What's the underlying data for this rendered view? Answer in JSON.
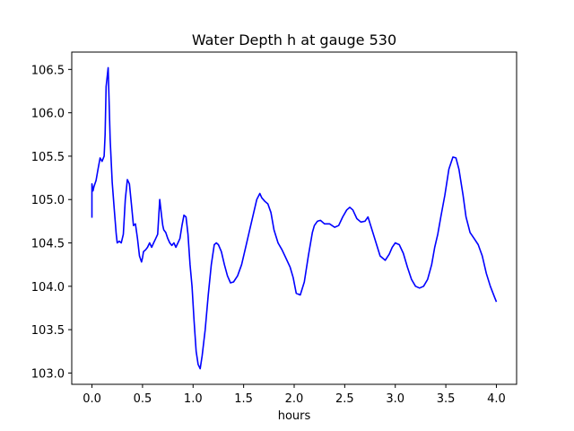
{
  "chart_data": {
    "type": "line",
    "title": "Water Depth h at gauge 530",
    "xlabel": "hours",
    "ylabel": "",
    "xlim": [
      -0.2,
      4.2
    ],
    "ylim": [
      102.87,
      106.7
    ],
    "xticks": [
      0.0,
      0.5,
      1.0,
      1.5,
      2.0,
      2.5,
      3.0,
      3.5,
      4.0
    ],
    "xtick_labels": [
      "0.0",
      "0.5",
      "1.0",
      "1.5",
      "2.0",
      "2.5",
      "3.0",
      "3.5",
      "4.0"
    ],
    "yticks": [
      103.0,
      103.5,
      104.0,
      104.5,
      105.0,
      105.5,
      106.0,
      106.5
    ],
    "ytick_labels": [
      "103.0",
      "103.5",
      "104.0",
      "104.5",
      "105.0",
      "105.5",
      "106.0",
      "106.5"
    ],
    "grid": false,
    "series": [
      {
        "color": "#0000ff",
        "x": [
          0.0,
          0.0,
          0.01,
          0.02,
          0.04,
          0.06,
          0.08,
          0.1,
          0.12,
          0.13,
          0.14,
          0.16,
          0.18,
          0.2,
          0.22,
          0.24,
          0.25,
          0.27,
          0.29,
          0.31,
          0.33,
          0.35,
          0.37,
          0.39,
          0.41,
          0.43,
          0.45,
          0.47,
          0.49,
          0.5,
          0.51,
          0.53,
          0.55,
          0.57,
          0.59,
          0.61,
          0.63,
          0.65,
          0.67,
          0.69,
          0.7,
          0.71,
          0.73,
          0.75,
          0.77,
          0.79,
          0.81,
          0.83,
          0.85,
          0.87,
          0.89,
          0.91,
          0.93,
          0.95,
          0.97,
          0.99,
          1.01,
          1.03,
          1.05,
          1.07,
          1.09,
          1.12,
          1.15,
          1.18,
          1.21,
          1.23,
          1.25,
          1.28,
          1.31,
          1.34,
          1.37,
          1.4,
          1.44,
          1.48,
          1.52,
          1.56,
          1.6,
          1.63,
          1.66,
          1.68,
          1.71,
          1.74,
          1.77,
          1.8,
          1.84,
          1.88,
          1.92,
          1.96,
          1.99,
          2.02,
          2.06,
          2.1,
          2.14,
          2.18,
          2.2,
          2.23,
          2.26,
          2.3,
          2.35,
          2.4,
          2.44,
          2.48,
          2.52,
          2.55,
          2.58,
          2.62,
          2.66,
          2.7,
          2.73,
          2.77,
          2.81,
          2.85,
          2.9,
          2.94,
          2.97,
          3.0,
          3.04,
          3.08,
          3.12,
          3.16,
          3.2,
          3.24,
          3.28,
          3.32,
          3.36,
          3.39,
          3.42,
          3.45,
          3.49,
          3.53,
          3.57,
          3.6,
          3.63,
          3.67,
          3.7,
          3.74,
          3.78,
          3.82,
          3.86,
          3.9,
          3.94,
          3.98,
          4.0
        ],
        "y": [
          104.79,
          105.18,
          105.1,
          105.15,
          105.22,
          105.35,
          105.48,
          105.44,
          105.5,
          105.75,
          106.3,
          106.52,
          105.7,
          105.2,
          104.9,
          104.6,
          104.5,
          104.52,
          104.5,
          104.6,
          105.0,
          105.23,
          105.18,
          104.95,
          104.7,
          104.72,
          104.55,
          104.35,
          104.28,
          104.33,
          104.4,
          104.42,
          104.45,
          104.5,
          104.45,
          104.5,
          104.55,
          104.6,
          105.0,
          104.8,
          104.7,
          104.65,
          104.62,
          104.55,
          104.5,
          104.47,
          104.5,
          104.45,
          104.5,
          104.55,
          104.7,
          104.82,
          104.8,
          104.6,
          104.25,
          104.0,
          103.6,
          103.25,
          103.1,
          103.05,
          103.2,
          103.5,
          103.9,
          104.25,
          104.48,
          104.5,
          104.48,
          104.4,
          104.25,
          104.12,
          104.04,
          104.05,
          104.12,
          104.25,
          104.45,
          104.65,
          104.85,
          105.0,
          105.07,
          105.02,
          104.98,
          104.95,
          104.85,
          104.65,
          104.5,
          104.42,
          104.32,
          104.22,
          104.1,
          103.92,
          103.9,
          104.05,
          104.35,
          104.62,
          104.7,
          104.75,
          104.76,
          104.72,
          104.72,
          104.68,
          104.7,
          104.8,
          104.88,
          104.91,
          104.88,
          104.78,
          104.74,
          104.75,
          104.8,
          104.65,
          104.5,
          104.35,
          104.3,
          104.37,
          104.45,
          104.5,
          104.48,
          104.38,
          104.22,
          104.08,
          104.0,
          103.98,
          104.0,
          104.08,
          104.25,
          104.45,
          104.6,
          104.8,
          105.05,
          105.35,
          105.49,
          105.48,
          105.35,
          105.05,
          104.8,
          104.62,
          104.55,
          104.48,
          104.35,
          104.15,
          104.0,
          103.88,
          103.82
        ]
      }
    ]
  }
}
